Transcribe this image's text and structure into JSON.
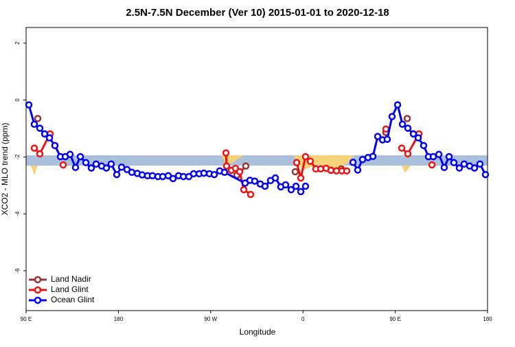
{
  "chart_data": {
    "type": "line",
    "title": "2.5N-7.5N December (Ver 10)   2015-01-01 to 2020-12-18",
    "x_label": "Longitude",
    "y_label": "XCO2 - MLO trend (ppm)",
    "xlim": [
      90,
      540
    ],
    "ylim": [
      -7.4,
      2.55
    ],
    "xticks": [
      {
        "value": 90,
        "label": "90 E"
      },
      180,
      {
        "value": 270,
        "label": "90 W"
      },
      {
        "value": 360,
        "label": "0"
      },
      {
        "value": 450,
        "label": "90 E"
      },
      {
        "value": 540,
        "label": "180"
      }
    ],
    "yticks": [
      2,
      0,
      -2,
      -4,
      -6
    ],
    "legend": "bottom-left",
    "series": [
      {
        "name": "Land Nadir",
        "color": "#9b3030",
        "x": [
          101.4,
          null,
          295.6,
          304.3,
          null,
          352.5,
          null,
          397.4,
          null,
          440.9,
          null,
          461.7
        ],
        "values": [
          -0.65,
          null,
          -2.64,
          -2.32,
          null,
          -2.52,
          null,
          -2.42,
          null,
          -1.14,
          null,
          -0.65
        ]
      },
      {
        "name": "Land Glint",
        "color": "#ee1111",
        "x": [
          98,
          103.4,
          113.4,
          null,
          126.2,
          null,
          284.9,
          285.5,
          290.2,
          294.2,
          298.3,
          302.3,
          309,
          null,
          353.9,
          357.9,
          362.5,
          367.2,
          372.6,
          377.3,
          382.6,
          387.3,
          392.7,
          398,
          402.7,
          null,
          440.9,
          null,
          456.3,
          462.3,
          473.1,
          null,
          485.8
        ],
        "values": [
          -1.69,
          -1.89,
          -1.19,
          null,
          -2.28,
          null,
          -1.86,
          -2.32,
          -2.47,
          -2.4,
          -2.52,
          -3.15,
          -3.32,
          null,
          -2.2,
          -2.74,
          -1.99,
          -2.15,
          -2.42,
          -2.42,
          -2.4,
          -2.47,
          -2.49,
          -2.49,
          -2.49,
          null,
          -1.02,
          null,
          -1.69,
          -1.89,
          -1.19,
          null,
          -2.28
        ]
      },
      {
        "name": "Ocean Glint",
        "color": "#0000ee",
        "x": [
          92.7,
          98,
          103.4,
          108.1,
          112.8,
          118.1,
          123.5,
          128.2,
          132.9,
          138.2,
          142.9,
          148.3,
          153.6,
          158.3,
          163.7,
          168.3,
          173,
          178.4,
          183.1,
          188.4,
          193.1,
          198.5,
          203.2,
          208.5,
          213.2,
          218.6,
          223.3,
          228.6,
          233.3,
          238.7,
          243.4,
          248.7,
          253.4,
          258.8,
          263.4,
          268.8,
          273.5,
          278.8,
          283.5,
          303.6,
          308.3,
          313,
          318.4,
          323,
          328.4,
          333.1,
          338.4,
          343.1,
          348.5,
          353.2,
          357.9,
          362.5,
          null,
          408.8,
          413.4,
          418.1,
          423.5,
          428.2,
          432.9,
          437.6,
          442.2,
          446.9,
          452.3,
          457,
          462.3,
          467.7,
          472.4,
          477.7,
          482.4,
          487.1,
          492.5,
          497.8,
          502.5,
          507.2,
          512.5,
          517.2,
          522.6,
          527.3,
          532.6,
          538
        ],
        "values": [
          -0.17,
          -0.85,
          -0.99,
          -1.19,
          -1.33,
          -1.6,
          -1.99,
          -1.99,
          -1.91,
          -2.37,
          -1.99,
          -2.2,
          -2.39,
          -2.25,
          -2.32,
          -2.39,
          -2.25,
          -2.62,
          -2.36,
          -2.44,
          -2.54,
          -2.58,
          -2.63,
          -2.66,
          -2.66,
          -2.69,
          -2.69,
          -2.66,
          -2.76,
          -2.66,
          -2.69,
          -2.69,
          -2.59,
          -2.59,
          -2.57,
          -2.59,
          -2.62,
          -2.49,
          -2.54,
          -2.92,
          -2.82,
          -2.85,
          -2.95,
          -3.03,
          -2.83,
          -2.74,
          -3.05,
          -2.98,
          -3.15,
          -3.03,
          -3.22,
          -3.03,
          null,
          -2.19,
          -2.46,
          -2.09,
          -2.02,
          -1.98,
          -1.28,
          -1.4,
          -1.38,
          -0.58,
          -0.17,
          -0.85,
          -0.99,
          -1.19,
          -1.33,
          -1.6,
          -1.99,
          -1.99,
          -1.91,
          -2.37,
          -1.99,
          -2.2,
          -2.39,
          -2.25,
          -2.32,
          -2.39,
          -2.25,
          -2.62
        ]
      }
    ]
  }
}
